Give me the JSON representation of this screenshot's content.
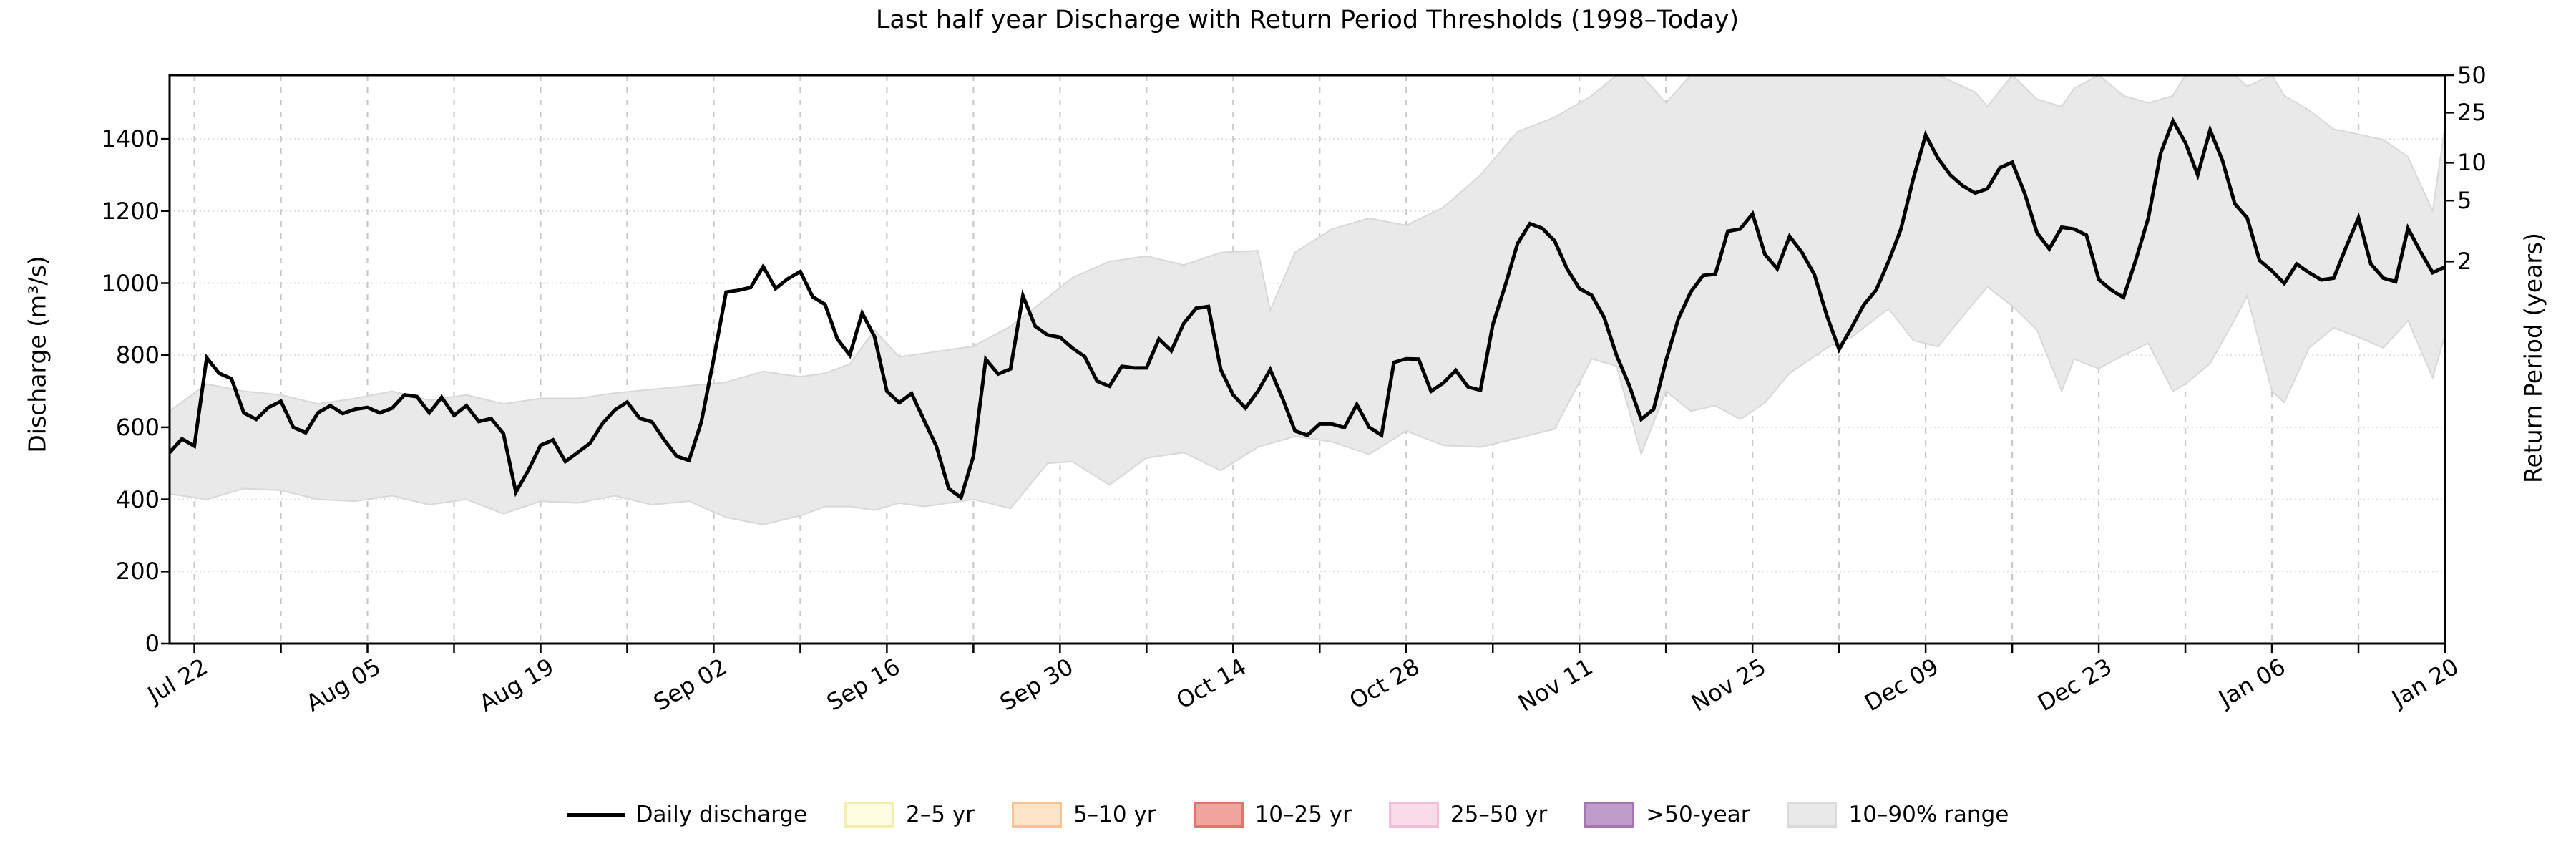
{
  "title": "Last half year Discharge with Return Period Thresholds (1998–Today)",
  "axes": {
    "left_label": "Discharge (m³/s)",
    "right_label": "Return Period (years)"
  },
  "legend": [
    {
      "label": "Daily discharge",
      "type": "line",
      "color": "#000000",
      "border": "#000000"
    },
    {
      "label": "2–5 yr",
      "type": "patch",
      "color": "#fffde1",
      "border": "#f3edae"
    },
    {
      "label": "5–10 yr",
      "type": "patch",
      "color": "#fde4c8",
      "border": "#fac389"
    },
    {
      "label": "10–25 yr",
      "type": "patch",
      "color": "#f1a49e",
      "border": "#e4726b"
    },
    {
      "label": "25–50 yr",
      "type": "patch",
      "color": "#f9dbe9",
      "border": "#f3bcd7"
    },
    {
      "label": ">50-year",
      "type": "patch",
      "color": "#bf9cc9",
      "border": "#a674b2"
    },
    {
      "label": "10–90% range",
      "type": "patch",
      "color": "#e9e9e9",
      "border": "#dadada"
    }
  ],
  "chart_data": {
    "type": "line",
    "title": "Last half year Discharge with Return Period Thresholds (1998–Today)",
    "xlabel": "",
    "ylabel": "Discharge (m³/s)",
    "ylabel_right": "Return Period (years)",
    "x_start": "Jul 20",
    "x_step_days": 1,
    "x_total_days": 184,
    "ylim": [
      0,
      1577
    ],
    "grid": "weekly dashed vertical, 200-unit dotted horizontal",
    "legend_position": "bottom center, single row",
    "y_left_ticks": [
      0,
      200,
      400,
      600,
      800,
      1000,
      1200,
      1400
    ],
    "y_right_ticks": [
      {
        "label": "50",
        "value": 1577
      },
      {
        "label": "25",
        "value": 1473
      },
      {
        "label": "10",
        "value": 1334
      },
      {
        "label": "5",
        "value": 1229
      },
      {
        "label": "2",
        "value": 1060
      }
    ],
    "x_major_ticks": {
      "labels": [
        "Jul 22",
        "Aug 05",
        "Aug 19",
        "Sep 02",
        "Sep 16",
        "Sep 30",
        "Oct 14",
        "Oct 28",
        "Nov 11",
        "Nov 25",
        "Dec 09",
        "Dec 23",
        "Jan 06",
        "Jan 20"
      ],
      "days": [
        2,
        16,
        30,
        44,
        58,
        72,
        86,
        100,
        114,
        128,
        142,
        156,
        170,
        184
      ]
    },
    "x_minor_tick_days": [
      9,
      23,
      37,
      51,
      65,
      79,
      93,
      107,
      121,
      135,
      149,
      163,
      177
    ],
    "series": [
      {
        "name": "Daily discharge",
        "color": "#000000",
        "values": [
          530,
          568,
          548,
          793,
          750,
          735,
          640,
          622,
          655,
          672,
          600,
          585,
          640,
          660,
          638,
          650,
          655,
          640,
          653,
          690,
          685,
          640,
          683,
          633,
          660,
          616,
          624,
          582,
          420,
          480,
          550,
          565,
          505,
          530,
          556,
          610,
          648,
          670,
          625,
          615,
          565,
          520,
          508,
          615,
          790,
          975,
          980,
          988,
          1046,
          985,
          1012,
          1032,
          962,
          941,
          845,
          800,
          917,
          852,
          700,
          668,
          694,
          620,
          548,
          430,
          405,
          520,
          789,
          748,
          762,
          965,
          880,
          856,
          850,
          820,
          796,
          728,
          714,
          769,
          765,
          765,
          845,
          812,
          888,
          930,
          935,
          760,
          690,
          653,
          700,
          760,
          680,
          590,
          578,
          609,
          609,
          599,
          663,
          600,
          578,
          780,
          790,
          789,
          700,
          723,
          758,
          712,
          703,
          885,
          993,
          1110,
          1165,
          1152,
          1117,
          1040,
          985,
          966,
          905,
          800,
          719,
          622,
          650,
          785,
          901,
          975,
          1021,
          1025,
          1144,
          1150,
          1192,
          1080,
          1040,
          1130,
          1085,
          1024,
          911,
          816,
          876,
          940,
          981,
          1060,
          1150,
          1290,
          1411,
          1346,
          1300,
          1270,
          1250,
          1262,
          1320,
          1335,
          1250,
          1140,
          1095,
          1155,
          1150,
          1133,
          1010,
          981,
          960,
          1065,
          1180,
          1360,
          1450,
          1390,
          1300,
          1425,
          1340,
          1220,
          1181,
          1063,
          1034,
          999,
          1053,
          1029,
          1009,
          1014,
          1100,
          1181,
          1053,
          1014,
          1004,
          1152,
          1088,
          1029,
          1045
        ]
      }
    ],
    "band": {
      "name": "10–90% range",
      "fill": "#e9e9e9",
      "edge": "#d8d8d8",
      "points_day_lo_hi": [
        [
          0,
          415,
          645
        ],
        [
          3,
          400,
          720
        ],
        [
          6,
          430,
          700
        ],
        [
          9,
          425,
          690
        ],
        [
          12,
          400,
          665
        ],
        [
          15,
          395,
          680
        ],
        [
          18,
          410,
          700
        ],
        [
          21,
          385,
          675
        ],
        [
          24,
          400,
          690
        ],
        [
          27,
          360,
          665
        ],
        [
          30,
          395,
          680
        ],
        [
          33,
          390,
          680
        ],
        [
          36,
          410,
          695
        ],
        [
          39,
          385,
          705
        ],
        [
          42,
          395,
          715
        ],
        [
          45,
          350,
          725
        ],
        [
          48,
          330,
          755
        ],
        [
          51,
          355,
          740
        ],
        [
          53,
          380,
          750
        ],
        [
          55,
          380,
          775
        ],
        [
          57,
          370,
          870
        ],
        [
          59,
          390,
          795
        ],
        [
          61,
          380,
          805
        ],
        [
          63,
          390,
          815
        ],
        [
          65,
          400,
          825
        ],
        [
          68,
          375,
          880
        ],
        [
          71,
          500,
          960
        ],
        [
          73,
          505,
          1015
        ],
        [
          76,
          440,
          1060
        ],
        [
          79,
          515,
          1075
        ],
        [
          82,
          530,
          1050
        ],
        [
          85,
          480,
          1085
        ],
        [
          88,
          545,
          1090
        ],
        [
          89,
          555,
          925
        ],
        [
          91,
          575,
          1085
        ],
        [
          94,
          560,
          1150
        ],
        [
          97,
          525,
          1180
        ],
        [
          100,
          590,
          1160
        ],
        [
          103,
          550,
          1210
        ],
        [
          106,
          545,
          1300
        ],
        [
          109,
          570,
          1420
        ],
        [
          112,
          595,
          1460
        ],
        [
          115,
          790,
          1520
        ],
        [
          117,
          770,
          1577
        ],
        [
          119,
          526,
          1577
        ],
        [
          121,
          700,
          1500
        ],
        [
          123,
          645,
          1577
        ],
        [
          125,
          660,
          1577
        ],
        [
          127,
          622,
          1577
        ],
        [
          129,
          668,
          1577
        ],
        [
          131,
          750,
          1577
        ],
        [
          134,
          820,
          1577
        ],
        [
          136,
          850,
          1577
        ],
        [
          139,
          929,
          1577
        ],
        [
          141,
          841,
          1577
        ],
        [
          143,
          824,
          1577
        ],
        [
          146,
          950,
          1530
        ],
        [
          147,
          989,
          1490
        ],
        [
          149,
          937,
          1577
        ],
        [
          151,
          870,
          1510
        ],
        [
          153,
          700,
          1490
        ],
        [
          154,
          789,
          1540
        ],
        [
          156,
          763,
          1577
        ],
        [
          158,
          800,
          1520
        ],
        [
          160,
          833,
          1500
        ],
        [
          162,
          700,
          1520
        ],
        [
          163,
          720,
          1577
        ],
        [
          165,
          777,
          1577
        ],
        [
          167,
          900,
          1577
        ],
        [
          168,
          965,
          1546
        ],
        [
          170,
          700,
          1577
        ],
        [
          171,
          669,
          1520
        ],
        [
          173,
          820,
          1480
        ],
        [
          175,
          876,
          1427
        ],
        [
          177,
          850,
          1413
        ],
        [
          179,
          820,
          1398
        ],
        [
          181,
          896,
          1350
        ],
        [
          183,
          738,
          1200
        ],
        [
          184,
          856,
          1437
        ]
      ]
    }
  }
}
